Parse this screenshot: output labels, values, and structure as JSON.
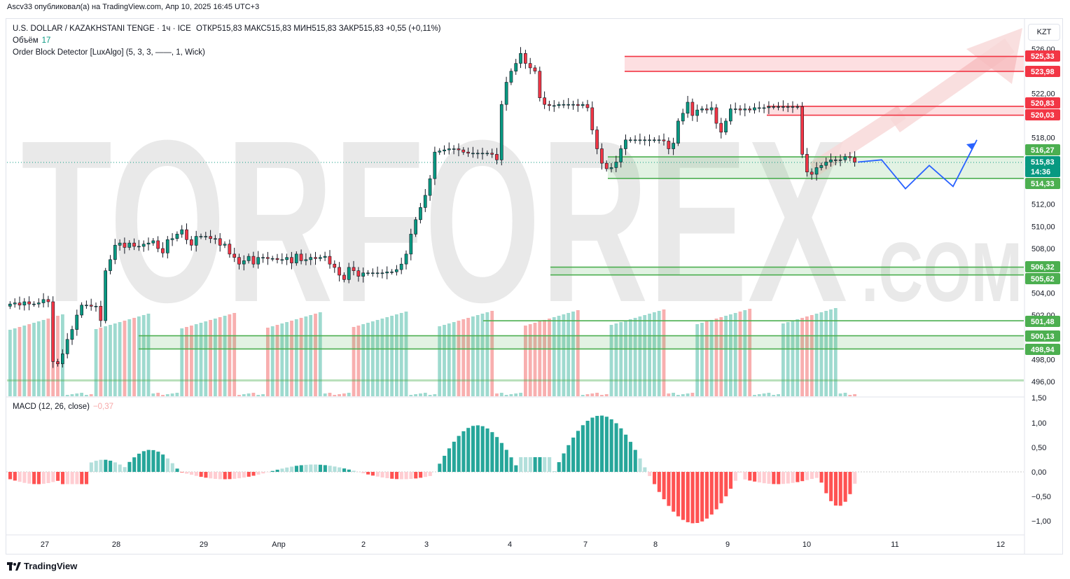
{
  "header": {
    "published_by": "Ascv33 опубликовал(а) на TradingView.com, Апр 10, 2025 16:45 UTC+3"
  },
  "legend": {
    "symbol": "U.S. DOLLAR / KAZAKHSTANI TENGE · 1ч · ICE",
    "ohlc": "ОТКР515,83  МАКС515,83  МИН515,83  ЗАКР515,83  +0,55 (+0,11%)",
    "volume_label": "Объём",
    "volume_value": "17",
    "indicator": "Order Block Detector [LuxAlgo] (5, 3, 3, ——, 1, Wick)",
    "macd_label": "MACD (12, 26, close)",
    "macd_value": "−0,37"
  },
  "currency_button": "KZT",
  "watermark": {
    "main": "TORFOREX",
    "sub": ".COM"
  },
  "colors": {
    "up": "#089981",
    "down": "#f23645",
    "up_light": "#8dd3c7",
    "down_light": "#f7a1a1",
    "ob_green": "#4caf50",
    "ob_red": "#f23645",
    "arrow": "#2962ff"
  },
  "price_axis": [
    "526,00",
    "522,00",
    "518,00",
    "512,00",
    "510,00",
    "508,00",
    "504,00",
    "502,00",
    "498,00",
    "496,00"
  ],
  "price_axis_partial": "1,50",
  "price_labels": [
    {
      "text": "525,33",
      "type": "red"
    },
    {
      "text": "523,98",
      "type": "red"
    },
    {
      "text": "520,83",
      "type": "red"
    },
    {
      "text": "520,03",
      "type": "red"
    },
    {
      "text": "516,27",
      "type": "green"
    },
    {
      "text": "515,83",
      "type": "green"
    },
    {
      "text": "14:36",
      "type": "green"
    },
    {
      "text": "514,33",
      "type": "green"
    },
    {
      "text": "506,32",
      "type": "green"
    },
    {
      "text": "505,62",
      "type": "green"
    },
    {
      "text": "501,48",
      "type": "green"
    },
    {
      "text": "500,13",
      "type": "green"
    },
    {
      "text": "498,94",
      "type": "green"
    }
  ],
  "macd_axis": [
    "1,00",
    "0,50",
    "0,00",
    "−0,50",
    "−1,00"
  ],
  "time_axis": [
    "27",
    "28",
    "29",
    "Апр",
    "2",
    "3",
    "4",
    "7",
    "8",
    "9",
    "10",
    "11",
    "12"
  ],
  "footer": {
    "brand": "TradingView"
  },
  "chart_data": {
    "type": "candlestick",
    "title": "U.S. DOLLAR / KAZAKHSTANI TENGE · 1ч · ICE",
    "ylim": [
      494,
      527
    ],
    "last_price": 515.83,
    "order_blocks": [
      {
        "top": 525.33,
        "bottom": 523.98,
        "kind": "bearish"
      },
      {
        "top": 520.83,
        "bottom": 520.03,
        "kind": "bearish"
      },
      {
        "top": 516.27,
        "bottom": 514.33,
        "kind": "bullish"
      },
      {
        "top": 506.32,
        "bottom": 505.62,
        "kind": "bullish"
      },
      {
        "top": 501.48,
        "bottom": 501.48,
        "kind": "bullish"
      },
      {
        "top": 500.13,
        "bottom": 498.94,
        "kind": "bullish"
      }
    ],
    "projection": [
      [
        515.8,
        0
      ],
      [
        516.0,
        1
      ],
      [
        513.4,
        2
      ],
      [
        515.5,
        3
      ],
      [
        513.6,
        4
      ],
      [
        517.8,
        5
      ]
    ],
    "close": [
      503.0,
      503.1,
      502.9,
      503.2,
      503.0,
      503.0,
      503.1,
      503.4,
      503.2,
      497.8,
      497.6,
      498.5,
      499.8,
      500.7,
      502.0,
      502.9,
      502.9,
      502.8,
      502.8,
      501.5,
      506.0,
      507.0,
      508.3,
      508.5,
      508.1,
      508.5,
      508.2,
      508.2,
      508.4,
      508.5,
      508.7,
      508.0,
      507.6,
      508.8,
      508.9,
      509.3,
      509.7,
      508.8,
      508.3,
      509.1,
      509.1,
      509.1,
      508.9,
      508.9,
      508.3,
      508.4,
      507.5,
      507.2,
      506.6,
      506.9,
      507.3,
      506.6,
      507.2,
      507.2,
      507.1,
      507.1,
      507.0,
      507.0,
      507.2,
      506.7,
      507.5,
      506.9,
      507.0,
      507.2,
      507.1,
      507.2,
      507.3,
      506.6,
      506.3,
      505.6,
      505.2,
      506.3,
      506.0,
      505.5,
      505.8,
      505.8,
      505.8,
      505.8,
      505.8,
      505.9,
      505.9,
      506.1,
      506.6,
      507.5,
      509.3,
      510.6,
      511.7,
      512.8,
      514.3,
      516.7,
      516.8,
      516.9,
      517.0,
      517.0,
      516.9,
      516.7,
      516.6,
      516.6,
      516.6,
      516.6,
      516.6,
      516.5,
      516.0,
      521.0,
      523.0,
      524.0,
      524.7,
      525.6,
      524.7,
      524.3,
      524.0,
      521.6,
      521.0,
      520.9,
      520.9,
      521.0,
      521.0,
      521.0,
      521.0,
      520.9,
      521.0,
      520.7,
      518.7,
      517.0,
      515.7,
      515.2,
      515.3,
      515.8,
      517.0,
      517.8,
      517.8,
      517.8,
      517.8,
      517.8,
      517.8,
      517.8,
      517.8,
      517.7,
      517.0,
      517.5,
      519.5,
      520.2,
      521.2,
      520.0,
      520.5,
      520.6,
      520.5,
      520.7,
      519.3,
      518.5,
      519.5,
      520.6,
      520.6,
      520.5,
      520.6,
      520.5,
      520.7,
      520.7,
      520.7,
      520.8,
      520.8,
      520.8,
      520.8,
      520.8,
      520.8,
      520.8,
      516.5,
      514.9,
      514.7,
      515.3,
      515.5,
      515.8,
      516.0,
      516.0,
      516.0,
      516.3,
      516.2,
      515.8
    ]
  }
}
